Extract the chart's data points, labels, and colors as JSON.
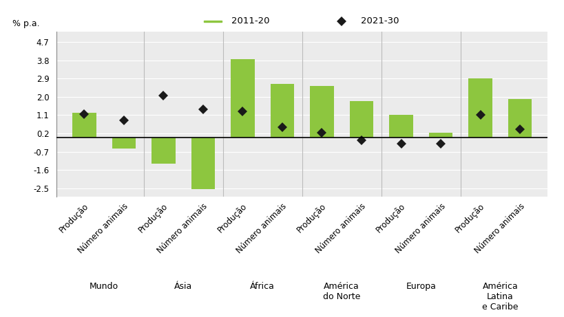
{
  "regions": [
    "Mundo",
    "Ásia",
    "África",
    "América\ndo Norte",
    "Europa",
    "América\nLatina\ne Caribe"
  ],
  "bar_2011_20": [
    1.2,
    -0.55,
    -1.3,
    -2.55,
    3.85,
    2.65,
    2.55,
    1.8,
    1.1,
    0.25,
    2.9,
    1.9
  ],
  "dot_2021_30": [
    1.15,
    0.85,
    2.05,
    1.4,
    1.3,
    0.5,
    0.25,
    -0.15,
    -0.3,
    -0.3,
    1.1,
    0.4
  ],
  "yticks": [
    4.7,
    3.8,
    2.9,
    2.0,
    1.1,
    0.2,
    -0.7,
    -1.6,
    -2.5
  ],
  "ymin": -2.9,
  "ymax": 5.2,
  "bar_color": "#8dc63f",
  "dot_color": "#1a1a1a",
  "legend_label_bar": "2011-20",
  "legend_label_dot": "2021-30",
  "ylabel": "% p.a.",
  "plot_bg_color": "#ebebeb",
  "fig_bg_color": "#ffffff",
  "header_bg_color": "#d9d9d9",
  "zero_line_y": 0
}
